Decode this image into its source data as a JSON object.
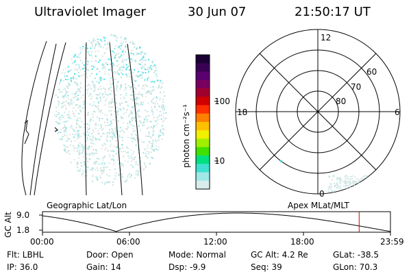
{
  "header": {
    "title": "Ultraviolet Imager",
    "date": "30 Jun 07",
    "time": "21:50:17 UT"
  },
  "colorbar": {
    "unit_label": "photon cm⁻²s⁻¹",
    "ticks": [
      "100",
      "10"
    ],
    "colors": [
      "#1a0033",
      "#3a0052",
      "#5a0070",
      "#7a0060",
      "#a00030",
      "#d00000",
      "#ff3000",
      "#ff8000",
      "#ffc000",
      "#f0f000",
      "#a0f000",
      "#40e000",
      "#00e080",
      "#40e0d0",
      "#a0e8e8",
      "#d8ecec"
    ]
  },
  "polar": {
    "mlt_labels": {
      "top": "12",
      "left": "18",
      "right": "6",
      "bottom": "0"
    },
    "lat_labels": [
      "60",
      "70",
      "80"
    ]
  },
  "captions": {
    "left": "Geographic Lat/Lon",
    "right": "Apex MLat/MLT"
  },
  "timeline": {
    "ylabel": "GC Alt",
    "y_ticks": [
      "9.0",
      "1.8"
    ],
    "x_ticks": [
      "00:00",
      "06:00",
      "12:00",
      "18:00",
      "23:59"
    ],
    "current_marker_hours": 21.84,
    "marker_color": "#c00000"
  },
  "info": {
    "filter": "Flt: LBHL",
    "ip": "IP: 36.0",
    "door": "Door: Open",
    "gain": "Gain: 14",
    "mode": "Mode: Normal",
    "dsp": "Dsp:   -9.9",
    "gc_alt": "GC Alt: 4.2 Re",
    "seq": "Seq: 39",
    "glat": "GLat: -38.5",
    "glon": "GLon:  70.3"
  }
}
